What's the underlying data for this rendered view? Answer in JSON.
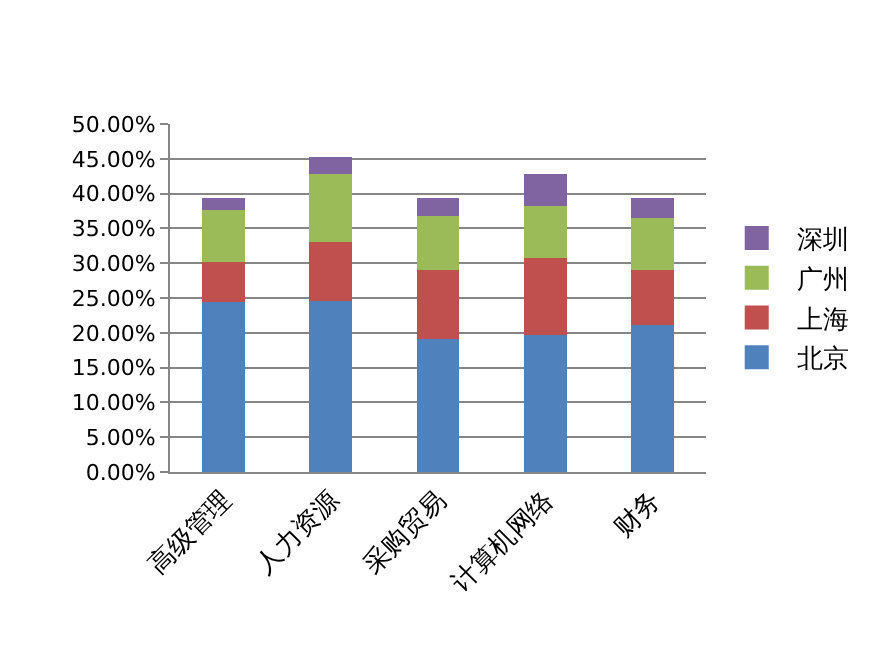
{
  "chart_data": {
    "type": "bar",
    "stacked": true,
    "categories": [
      "高级管理",
      "人力资源",
      "采购贸易",
      "计算机网络",
      "财务"
    ],
    "series": [
      {
        "name": "北京",
        "color": "#4f81bd",
        "values": [
          24.4,
          24.6,
          19.1,
          19.7,
          21.1
        ]
      },
      {
        "name": "上海",
        "color": "#c0504d",
        "values": [
          5.8,
          8.5,
          9.9,
          11.0,
          7.9
        ]
      },
      {
        "name": "广州",
        "color": "#9bbb59",
        "values": [
          7.4,
          9.7,
          7.8,
          7.5,
          7.5
        ]
      },
      {
        "name": "深圳",
        "color": "#8064a2",
        "values": [
          1.8,
          2.4,
          2.6,
          4.6,
          2.9
        ]
      }
    ],
    "ylim": [
      0,
      50
    ],
    "yticks": [
      {
        "value": 0,
        "label": "0.00%"
      },
      {
        "value": 5,
        "label": "5.00%"
      },
      {
        "value": 10,
        "label": "10.00%"
      },
      {
        "value": 15,
        "label": "15.00%"
      },
      {
        "value": 20,
        "label": "20.00%"
      },
      {
        "value": 25,
        "label": "25.00%"
      },
      {
        "value": 30,
        "label": "30.00%"
      },
      {
        "value": 35,
        "label": "35.00%"
      },
      {
        "value": 40,
        "label": "40.00%"
      },
      {
        "value": 45,
        "label": "45.00%"
      },
      {
        "value": 50,
        "label": "50.00%"
      }
    ],
    "grid": "y",
    "legend": "right"
  }
}
